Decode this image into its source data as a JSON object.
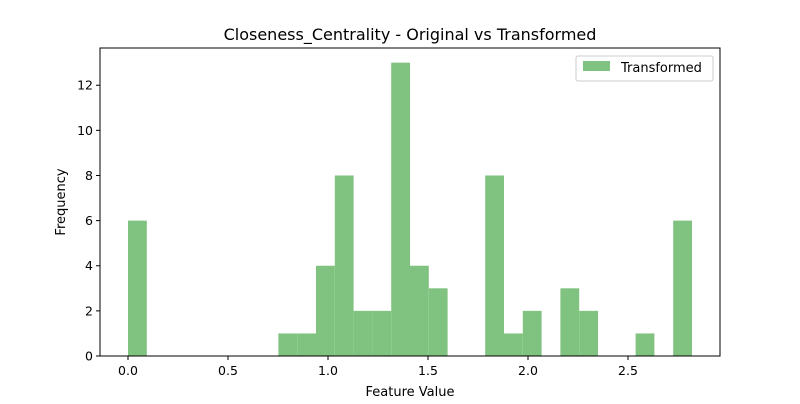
{
  "chart_data": {
    "type": "bar",
    "title": "Closeness_Centrality - Original vs Transformed",
    "xlabel": "Feature Value",
    "ylabel": "Frequency",
    "xlim": [
      -0.14,
      2.96
    ],
    "ylim": [
      0,
      13.65
    ],
    "x_ticks": [
      0.0,
      0.5,
      1.0,
      1.5,
      2.0,
      2.5
    ],
    "x_tick_labels": [
      "0.0",
      "0.5",
      "1.0",
      "1.5",
      "2.0",
      "2.5"
    ],
    "y_ticks": [
      0,
      2,
      4,
      6,
      8,
      10,
      12
    ],
    "y_tick_labels": [
      "0",
      "2",
      "4",
      "6",
      "8",
      "10",
      "12"
    ],
    "grid": false,
    "legend_position": "upper right",
    "series": [
      {
        "name": "Transformed",
        "color": "#80c280",
        "bins": [
          {
            "x0": 0.0,
            "x1": 0.094,
            "value": 6
          },
          {
            "x0": 0.094,
            "x1": 0.188,
            "value": 0
          },
          {
            "x0": 0.188,
            "x1": 0.282,
            "value": 0
          },
          {
            "x0": 0.282,
            "x1": 0.376,
            "value": 0
          },
          {
            "x0": 0.376,
            "x1": 0.47,
            "value": 0
          },
          {
            "x0": 0.47,
            "x1": 0.564,
            "value": 0
          },
          {
            "x0": 0.564,
            "x1": 0.658,
            "value": 0
          },
          {
            "x0": 0.658,
            "x1": 0.752,
            "value": 0
          },
          {
            "x0": 0.752,
            "x1": 0.846,
            "value": 1
          },
          {
            "x0": 0.846,
            "x1": 0.94,
            "value": 1
          },
          {
            "x0": 0.94,
            "x1": 1.034,
            "value": 4
          },
          {
            "x0": 1.034,
            "x1": 1.128,
            "value": 8
          },
          {
            "x0": 1.128,
            "x1": 1.222,
            "value": 2
          },
          {
            "x0": 1.222,
            "x1": 1.316,
            "value": 2
          },
          {
            "x0": 1.316,
            "x1": 1.41,
            "value": 13
          },
          {
            "x0": 1.41,
            "x1": 1.504,
            "value": 4
          },
          {
            "x0": 1.504,
            "x1": 1.598,
            "value": 3
          },
          {
            "x0": 1.598,
            "x1": 1.692,
            "value": 0
          },
          {
            "x0": 1.692,
            "x1": 1.786,
            "value": 0
          },
          {
            "x0": 1.786,
            "x1": 1.88,
            "value": 8
          },
          {
            "x0": 1.88,
            "x1": 1.974,
            "value": 1
          },
          {
            "x0": 1.974,
            "x1": 2.068,
            "value": 2
          },
          {
            "x0": 2.068,
            "x1": 2.162,
            "value": 0
          },
          {
            "x0": 2.162,
            "x1": 2.256,
            "value": 3
          },
          {
            "x0": 2.256,
            "x1": 2.35,
            "value": 2
          },
          {
            "x0": 2.35,
            "x1": 2.444,
            "value": 0
          },
          {
            "x0": 2.444,
            "x1": 2.538,
            "value": 0
          },
          {
            "x0": 2.538,
            "x1": 2.632,
            "value": 1
          },
          {
            "x0": 2.632,
            "x1": 2.726,
            "value": 0
          },
          {
            "x0": 2.726,
            "x1": 2.82,
            "value": 6
          }
        ]
      }
    ]
  }
}
